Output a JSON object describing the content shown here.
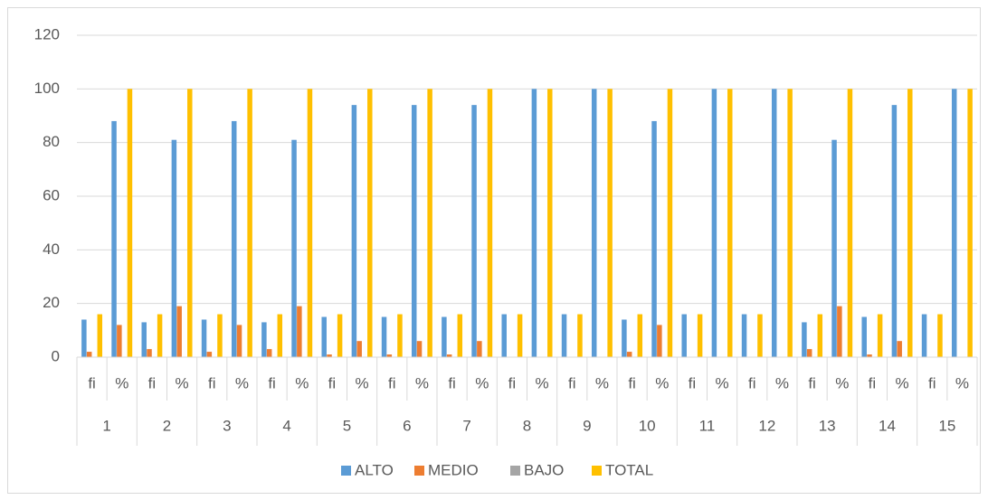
{
  "chart_data": {
    "type": "bar",
    "category_groups": [
      "1",
      "2",
      "3",
      "4",
      "5",
      "6",
      "7",
      "8",
      "9",
      "10",
      "11",
      "12",
      "13",
      "14",
      "15"
    ],
    "categories": [
      "fi",
      "%",
      "fi",
      "%",
      "fi",
      "%",
      "fi",
      "%",
      "fi",
      "%",
      "fi",
      "%",
      "fi",
      "%",
      "fi",
      "%",
      "fi",
      "%",
      "fi",
      "%",
      "fi",
      "%",
      "fi",
      "%",
      "fi",
      "%",
      "fi",
      "%",
      "fi",
      "%"
    ],
    "series": [
      {
        "name": "ALTO",
        "color": "#5b9bd5",
        "values": [
          14,
          88,
          13,
          81,
          14,
          88,
          13,
          81,
          15,
          94,
          15,
          94,
          15,
          94,
          16,
          100,
          16,
          100,
          14,
          88,
          16,
          100,
          16,
          100,
          13,
          81,
          15,
          94,
          16,
          100
        ]
      },
      {
        "name": "MEDIO",
        "color": "#ed7d31",
        "values": [
          2,
          12,
          3,
          19,
          2,
          12,
          3,
          19,
          1,
          6,
          1,
          6,
          1,
          6,
          0,
          0,
          0,
          0,
          2,
          12,
          0,
          0,
          0,
          0,
          3,
          19,
          1,
          6,
          0,
          0
        ]
      },
      {
        "name": "BAJO",
        "color": "#a5a5a5",
        "values": [
          0,
          0,
          0,
          0,
          0,
          0,
          0,
          0,
          0,
          0,
          0,
          0,
          0,
          0,
          0,
          0,
          0,
          0,
          0,
          0,
          0,
          0,
          0,
          0,
          0,
          0,
          0,
          0,
          0,
          0
        ]
      },
      {
        "name": "TOTAL",
        "color": "#ffc000",
        "values": [
          16,
          100,
          16,
          100,
          16,
          100,
          16,
          100,
          16,
          100,
          16,
          100,
          16,
          100,
          16,
          100,
          16,
          100,
          16,
          100,
          16,
          100,
          16,
          100,
          16,
          100,
          16,
          100,
          16,
          100
        ]
      }
    ],
    "ylim": [
      0,
      120
    ],
    "yticks": [
      0,
      20,
      40,
      60,
      80,
      100,
      120
    ],
    "grid": true,
    "legend": "bottom"
  }
}
